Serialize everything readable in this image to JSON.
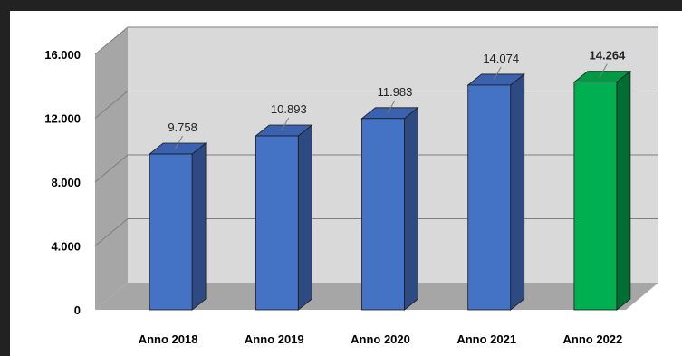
{
  "chart_data": {
    "type": "bar",
    "style": "3d-column",
    "categories": [
      "Anno 2018",
      "Anno 2019",
      "Anno 2020",
      "Anno 2021",
      "Anno 2022"
    ],
    "values": [
      9758,
      10893,
      11983,
      14074,
      14264
    ],
    "data_labels": [
      "9.758",
      "10.893",
      "11.983",
      "14.074",
      "14.264"
    ],
    "highlight_index": 4,
    "y_ticks": [
      0,
      4000,
      8000,
      12000,
      16000
    ],
    "y_tick_labels": [
      "0",
      "4.000",
      "8.000",
      "12.000",
      "16.000"
    ],
    "ylim": [
      0,
      16000
    ],
    "grid": true,
    "legend": "none",
    "title": "",
    "xlabel": "",
    "ylabel": "",
    "colors": {
      "bar_front": "#4472C4",
      "bar_side": "#2E4A82",
      "bar_top": "#3A62AE",
      "highlight_front": "#00B050",
      "highlight_side": "#006E32",
      "highlight_top": "#009A44",
      "back_wall": "#D9D9D9",
      "side_wall": "#A6A6A6",
      "floor": "#A6A6A6",
      "gridline": "#7F7F7F"
    }
  }
}
